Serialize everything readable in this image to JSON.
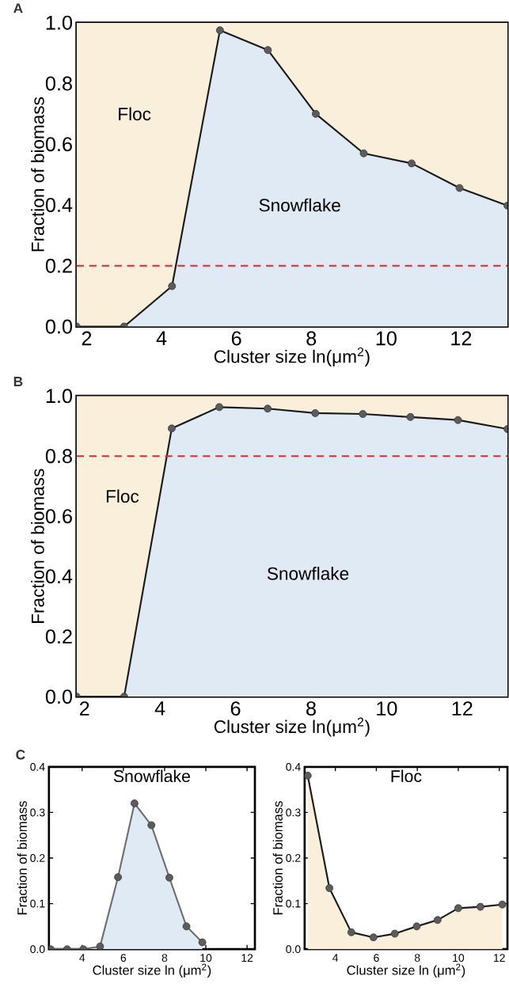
{
  "chart_data": [
    {
      "type": "area",
      "xlabel": "Cluster size ln(μm$^{2}$)",
      "ylabel": "Fraction of biomass",
      "x": [
        1.73,
        3.0,
        4.28,
        5.56,
        6.84,
        8.12,
        9.4,
        10.68,
        11.96,
        13.24
      ],
      "series": [
        {
          "color": "#e0eaf5",
          "values": [
            0,
            0,
            0.133,
            0.975,
            0.91,
            0.7,
            0.57,
            0.537,
            0.456,
            0.398
          ]
        }
      ],
      "xlim": [
        1.73,
        13.24
      ],
      "ylim": [
        0,
        1
      ],
      "xticks": [
        2,
        4,
        6,
        8,
        10,
        12
      ],
      "yticks": [
        {
          "value": 0,
          "label": "0.0"
        },
        {
          "value": 0.2,
          "label": "0.2"
        },
        {
          "value": 0.4,
          "label": "0.4"
        },
        {
          "value": 0.6,
          "label": "0.6"
        },
        {
          "value": 0.8,
          "label": "0.8"
        },
        {
          "value": 1,
          "label": "1.0"
        }
      ],
      "bands": [
        {
          "axis": "y",
          "from": 0,
          "to": 1,
          "color": "#faefdb"
        }
      ],
      "ref_lines": [
        {
          "axis": "y",
          "value": 0.2,
          "color": "#e8262a",
          "line_style": "dashed"
        }
      ],
      "annotations": [
        "A",
        "Floc",
        "Snowflake"
      ],
      "marker": "circle",
      "grid": false
    },
    {
      "type": "area",
      "xlabel": "Cluster size ln(μm$^{2}$)",
      "ylabel": "Fraction of biomass",
      "x": [
        1.79,
        3.05,
        4.31,
        5.57,
        6.85,
        8.11,
        9.37,
        10.63,
        11.89,
        13.2
      ],
      "series": [
        {
          "color": "#e0eaf5",
          "values": [
            0,
            0,
            0.892,
            0.963,
            0.958,
            0.943,
            0.94,
            0.93,
            0.92,
            0.89
          ]
        }
      ],
      "xlim": [
        1.79,
        13.2
      ],
      "ylim": [
        0,
        1
      ],
      "xticks": [
        2,
        4,
        6,
        8,
        10,
        12
      ],
      "yticks": [
        {
          "value": 0,
          "label": "0.0"
        },
        {
          "value": 0.2,
          "label": "0.2"
        },
        {
          "value": 0.4,
          "label": "0.4"
        },
        {
          "value": 0.6,
          "label": "0.6"
        },
        {
          "value": 0.8,
          "label": "0.8"
        },
        {
          "value": 1,
          "label": "1.0"
        }
      ],
      "bands": [
        {
          "axis": "y",
          "from": 0,
          "to": 1,
          "color": "#faefdb"
        }
      ],
      "ref_lines": [
        {
          "axis": "y",
          "value": 0.8,
          "color": "#e8262a",
          "line_style": "dashed"
        }
      ],
      "annotations": [
        "B",
        "Floc",
        "Snowflake"
      ],
      "marker": "circle",
      "grid": false
    },
    {
      "type": "area",
      "title": "Snowflake",
      "xlabel": "Cluster size ln (μm$^{2}$)",
      "ylabel": "Fraction of biomass",
      "x": [
        2.47,
        3.27,
        4.06,
        4.87,
        5.74,
        6.54,
        7.36,
        8.23,
        9.06,
        9.83
      ],
      "series": [
        {
          "color": "#e0eaf5",
          "values": [
            0,
            0,
            0,
            0.006,
            0.158,
            0.32,
            0.272,
            0.157,
            0.05,
            0.015
          ]
        }
      ],
      "xlim": [
        2.39,
        12.38
      ],
      "ylim": [
        0,
        0.4
      ],
      "xticks": [
        4,
        6,
        8,
        10,
        12
      ],
      "yticks": [
        {
          "value": 0,
          "label": "0.0"
        },
        {
          "value": 0.1,
          "label": "0.1"
        },
        {
          "value": 0.2,
          "label": "0.2"
        },
        {
          "value": 0.3,
          "label": "0.3"
        },
        {
          "value": 0.4,
          "label": "0.4"
        }
      ],
      "annotations": [
        "C"
      ],
      "marker": "circle",
      "grid": false
    },
    {
      "type": "area",
      "title": "Floc",
      "xlabel": "Cluster size ln (μm$^{2}$)",
      "ylabel": "Fraction of biomass",
      "x": [
        2.65,
        3.71,
        4.78,
        5.86,
        6.9,
        7.97,
        8.99,
        10.0,
        11.08,
        12.15
      ],
      "series": [
        {
          "color": "#faefdb",
          "values": [
            0.381,
            0.134,
            0.037,
            0.026,
            0.034,
            0.05,
            0.064,
            0.09,
            0.093,
            0.098
          ]
        }
      ],
      "xlim": [
        2.5,
        12.4
      ],
      "ylim": [
        0,
        0.4
      ],
      "xticks": [
        4,
        6,
        8,
        10,
        12
      ],
      "yticks": [
        {
          "value": 0,
          "label": "0.0"
        },
        {
          "value": 0.1,
          "label": "0.1"
        },
        {
          "value": 0.2,
          "label": "0.2"
        },
        {
          "value": 0.3,
          "label": "0.3"
        },
        {
          "value": 0.4,
          "label": "0.4"
        }
      ],
      "marker": "circle",
      "grid": false
    }
  ]
}
